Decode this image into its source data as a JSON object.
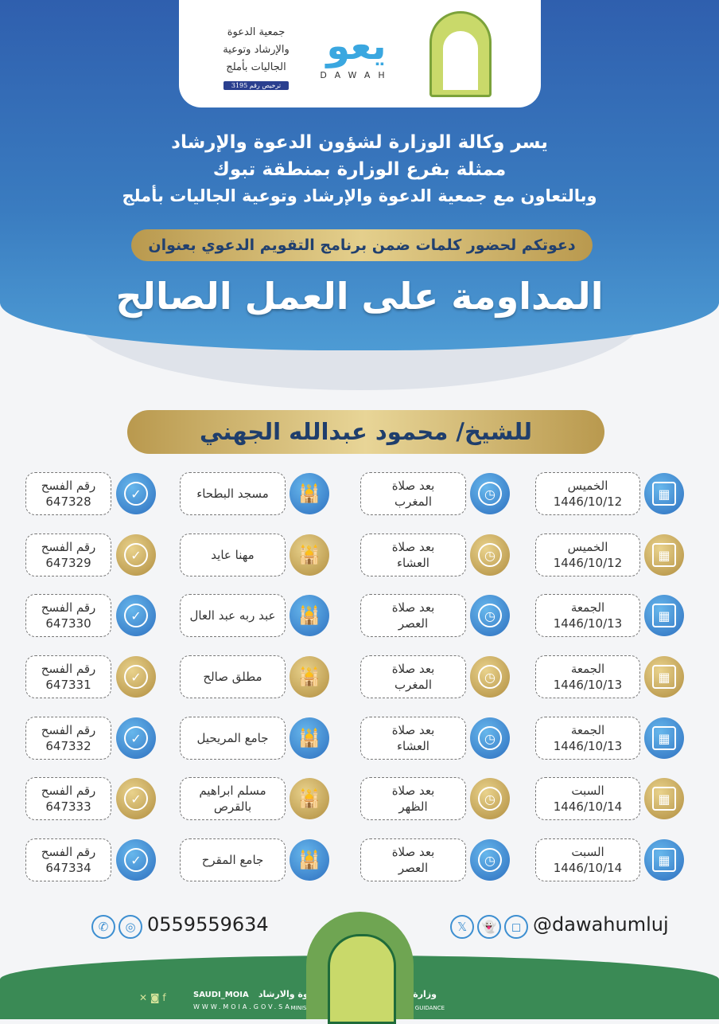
{
  "header": {
    "association_name": [
      "جمعية الدعوة",
      "والإرشاد وتوعية",
      "الجاليات بأملج"
    ],
    "license": "ترخيص رقم 3195",
    "dawah_label": "DAWAH",
    "intro_lines": [
      "يسر وكالة الوزارة لشؤون الدعوة والإرشاد",
      "ممثلة بفرع الوزارة بمنطقة تبوك",
      "وبالتعاون مع جمعية الدعوة والإرشاد وتوعية الجاليات بأملج"
    ],
    "invitation": "دعوتكم لحضور كلمات ضمن برنامج التقويم الدعوي بعنوان",
    "title": "المداومة على العمل الصالح",
    "speaker": "للشيخ/ محمود عبدالله الجهني"
  },
  "colors": {
    "blue": "#2f5fae",
    "gold": "#c9aa5e",
    "green": "#3a8a55"
  },
  "schedule": [
    {
      "day": "الخميس",
      "date": "1446/10/12",
      "time": [
        "بعد صلاة",
        "المغرب"
      ],
      "location": [
        "مسجد البطحاء"
      ],
      "number_label": "رقم الفسح",
      "number": "647328",
      "color": "blue"
    },
    {
      "day": "الخميس",
      "date": "1446/10/12",
      "time": [
        "بعد صلاة",
        "العشاء"
      ],
      "location": [
        "مهنا عايد"
      ],
      "number_label": "رقم الفسح",
      "number": "647329",
      "color": "gold"
    },
    {
      "day": "الجمعة",
      "date": "1446/10/13",
      "time": [
        "بعد صلاة",
        "العصر"
      ],
      "location": [
        "عبد ربه عبد العال"
      ],
      "number_label": "رقم الفسح",
      "number": "647330",
      "color": "blue"
    },
    {
      "day": "الجمعة",
      "date": "1446/10/13",
      "time": [
        "بعد صلاة",
        "المغرب"
      ],
      "location": [
        "مطلق صالح"
      ],
      "number_label": "رقم الفسح",
      "number": "647331",
      "color": "gold"
    },
    {
      "day": "الجمعة",
      "date": "1446/10/13",
      "time": [
        "بعد صلاة",
        "العشاء"
      ],
      "location": [
        "جامع المريحيل"
      ],
      "number_label": "رقم الفسح",
      "number": "647332",
      "color": "blue"
    },
    {
      "day": "السبت",
      "date": "1446/10/14",
      "time": [
        "بعد صلاة",
        "الظهر"
      ],
      "location": [
        "مسلم ابراهيم",
        "بالقرص"
      ],
      "number_label": "رقم الفسح",
      "number": "647333",
      "color": "gold"
    },
    {
      "day": "السبت",
      "date": "1446/10/14",
      "time": [
        "بعد صلاة",
        "العصر"
      ],
      "location": [
        "جامع المقرح"
      ],
      "number_label": "رقم الفسح",
      "number": "647334",
      "color": "blue"
    }
  ],
  "contact": {
    "phone": "0559559634",
    "handle": "@dawahumluj",
    "icons": [
      "phone-icon",
      "whatsapp-icon",
      "x-icon",
      "snapchat-icon",
      "instagram-icon"
    ]
  },
  "footer": {
    "ministry_ar": "وزارة الشؤون الاسلامية والدعوة والارشاد",
    "ministry_en": "MINISRTY OF ISLAMIC AFFAIRS, DAWAH AND GUIDANCE",
    "account": "SAUDI_MOIA",
    "website": "WWW.MOIA.GOV.SA"
  }
}
